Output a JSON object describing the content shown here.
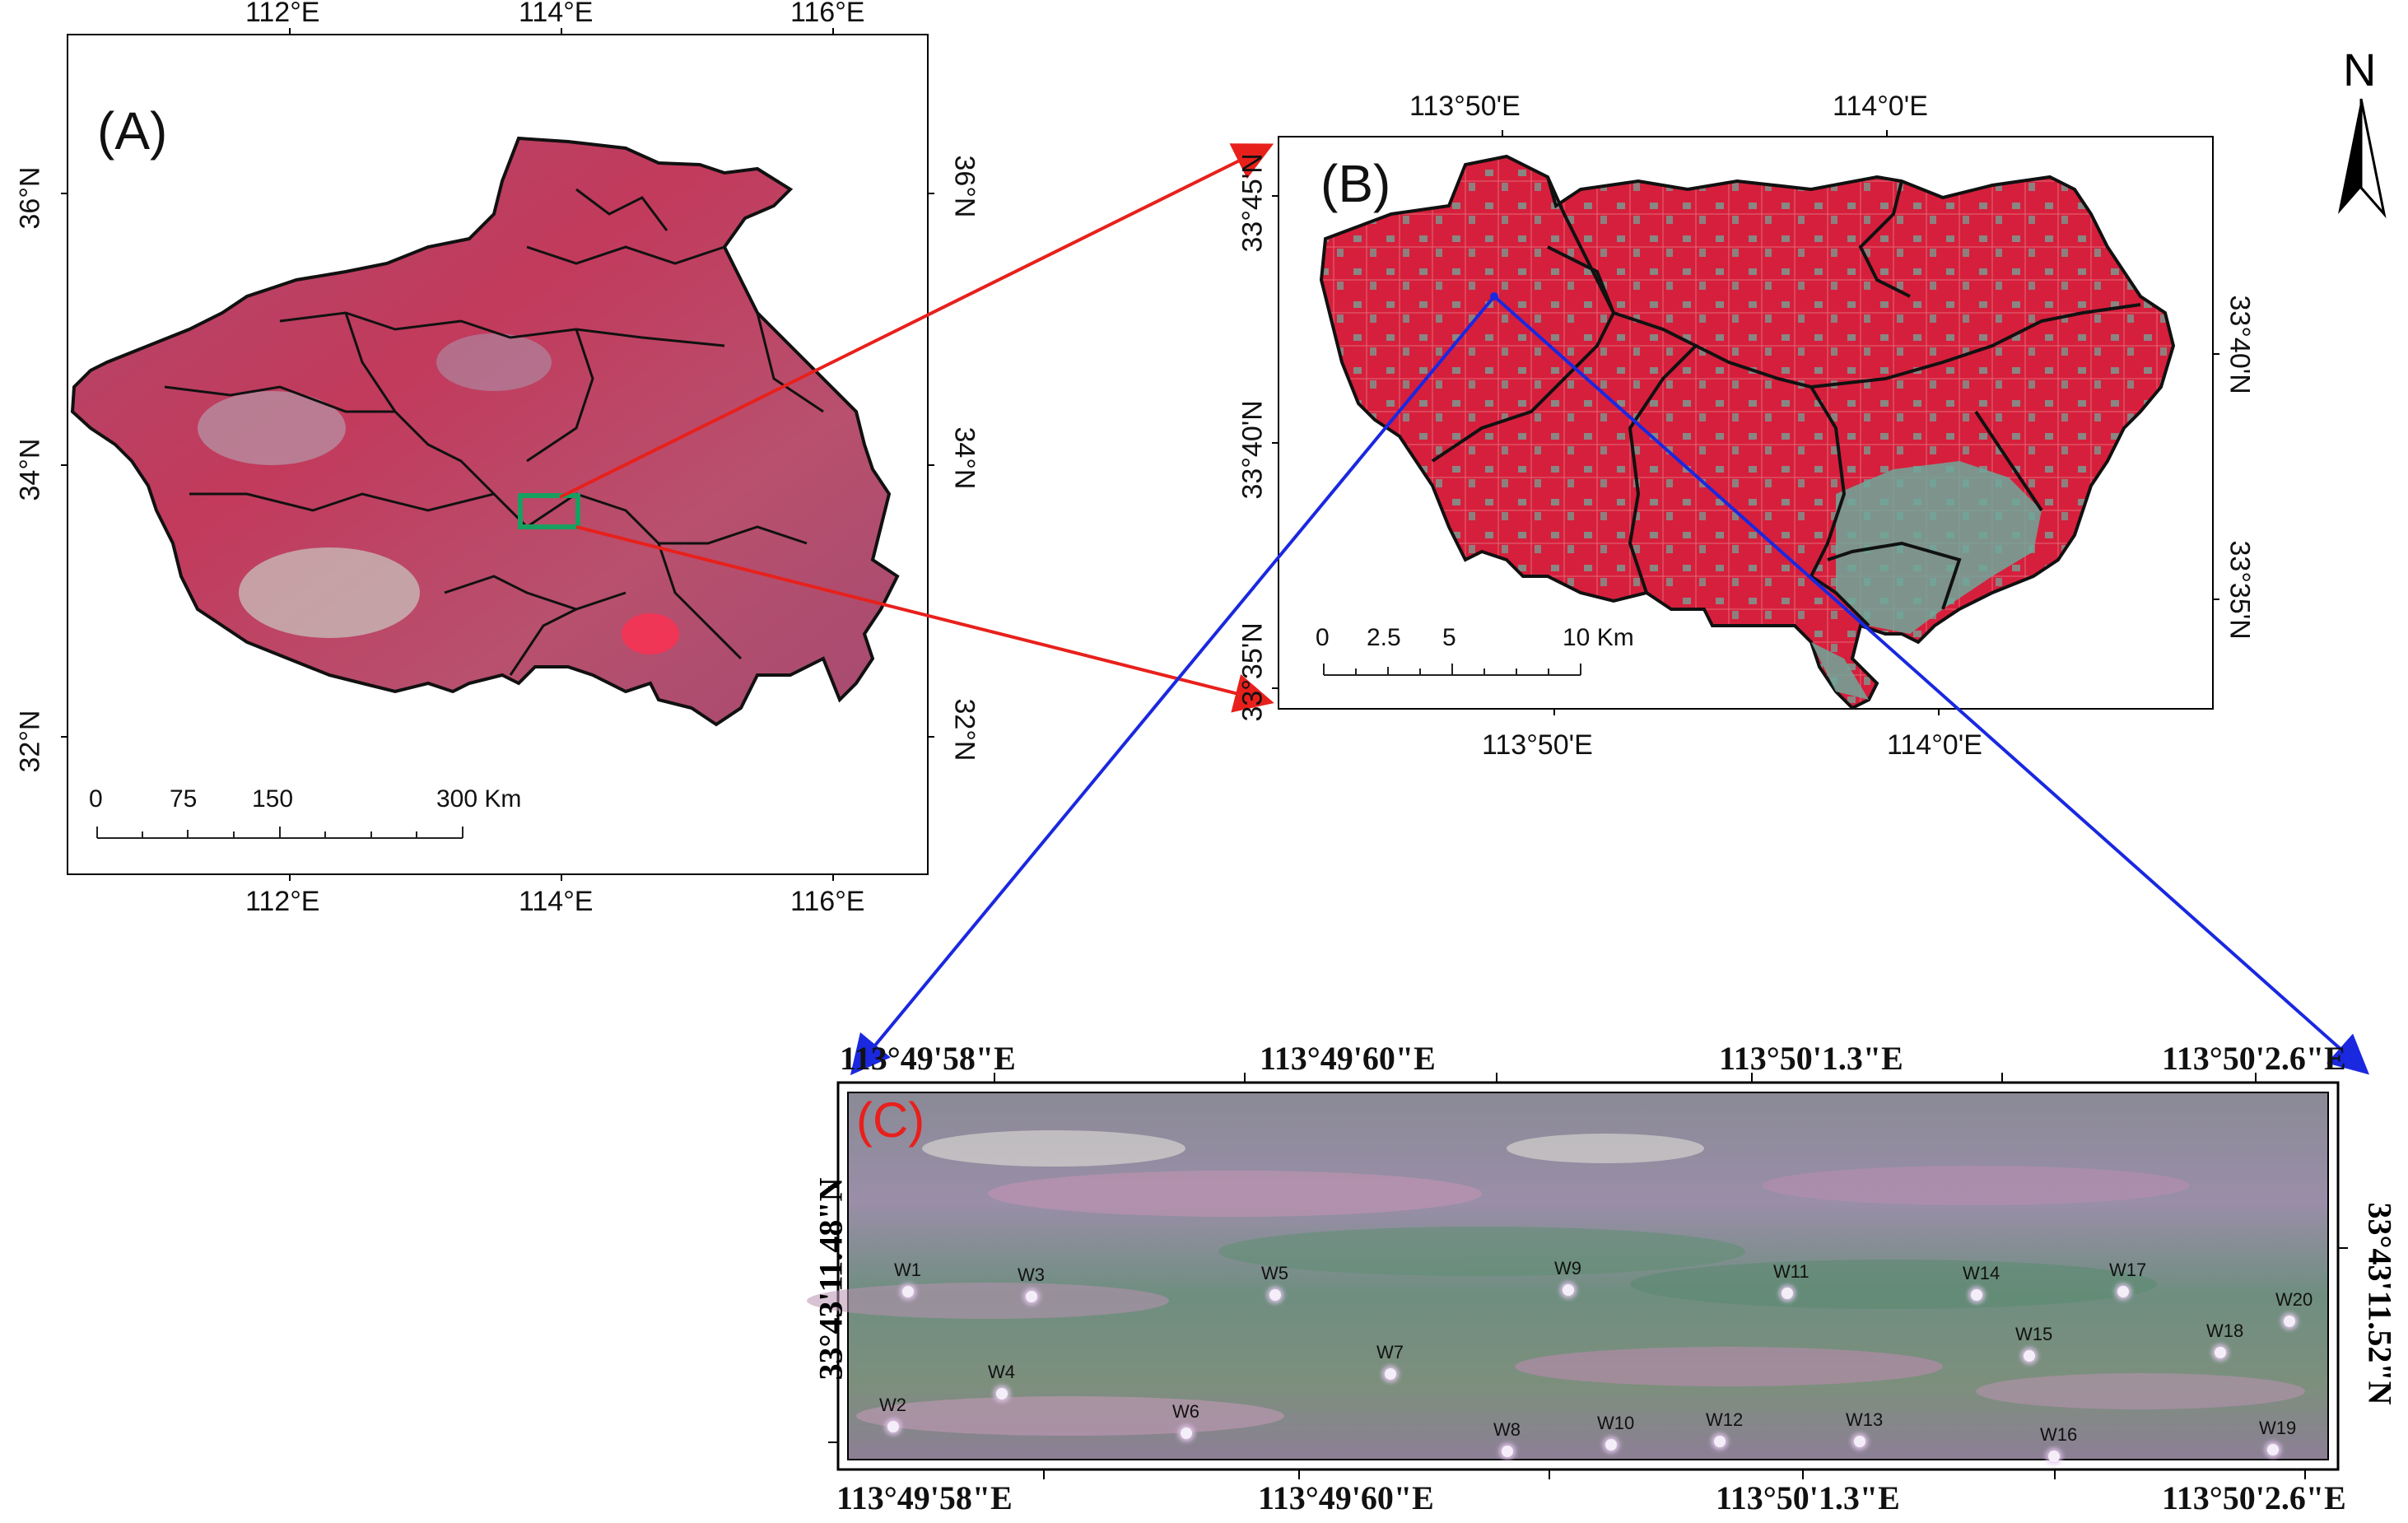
{
  "panel_a": {
    "title": "(A)",
    "top_ticks": [
      "112°E",
      "114°E",
      "116°E"
    ],
    "bottom_ticks": [
      "112°E",
      "114°E",
      "116°E"
    ],
    "left_ticks": [
      "36°N",
      "34°N",
      "32°N"
    ],
    "right_ticks": [
      "36°N",
      "34°N",
      "32°N"
    ],
    "scale_labels": [
      "0",
      "75",
      "150",
      "300 Km"
    ]
  },
  "panel_b": {
    "title": "(B)",
    "top_ticks": [
      "113°50'E",
      "114°0'E"
    ],
    "bottom_ticks": [
      "113°50'E",
      "114°0'E"
    ],
    "left_ticks": [
      "33°45'N",
      "33°40'N",
      "33°35'N"
    ],
    "right_ticks": [
      "33°40'N",
      "33°35'N"
    ],
    "scale_labels": [
      "0",
      "2.5",
      "5",
      "10 Km"
    ]
  },
  "panel_c": {
    "title": "(C)",
    "top_ticks": [
      "113°49'58\"E",
      "113°49'60\"E",
      "113°50'1.3\"E",
      "113°50'2.6\"E"
    ],
    "bottom_ticks": [
      "113°49'58\"E",
      "113°49'60\"E",
      "113°50'1.3\"E",
      "113°50'2.6\"E"
    ],
    "left_tick": "33°43'11.48\"N",
    "right_tick": "33°43'11.52\"N",
    "wells": [
      "W1",
      "W2",
      "W3",
      "W4",
      "W5",
      "W6",
      "W7",
      "W8",
      "W9",
      "W10",
      "W11",
      "W12",
      "W13",
      "W14",
      "W15",
      "W16",
      "W17",
      "W18",
      "W19",
      "W20"
    ]
  },
  "north_arrow": {
    "label": "N"
  },
  "colors": {
    "false_color_red": "#d61f3c",
    "vegetation_green": "#6fa89a",
    "study_box": "#18a060",
    "arrow_red": "#e8201c",
    "arrow_blue": "#1a28e0"
  }
}
